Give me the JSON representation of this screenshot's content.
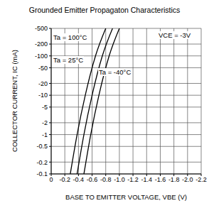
{
  "chart_data": {
    "type": "line",
    "title": "Grounded Emitter Propagaton Characteristics",
    "x_label": "BASE TO EMITTER VOLTAGE, VBE (V)",
    "y_label": "COLLECTOR CURRENT, IC (mA)",
    "annotations": [
      "VCE = -3V"
    ],
    "log": "y",
    "grid": true,
    "xlim": [
      -2.2,
      0
    ],
    "ylim": [
      -500,
      -0.1
    ],
    "xticks": [
      0,
      -0.2,
      -0.4,
      -0.6,
      -0.8,
      {
        "value": -1.0,
        "label": "-1.0"
      },
      -1.2,
      -1.4,
      -1.6,
      -1.8,
      {
        "value": -2.0,
        "label": "-2.0"
      },
      -2.2
    ],
    "yticks": [
      -500,
      -200,
      -100,
      -50,
      -20,
      -10,
      -5,
      -2,
      -1,
      -0.5,
      -0.2,
      -0.1
    ],
    "series": [
      {
        "name": "Ta = 100°C",
        "color": "#000000",
        "x": [
          -0.28,
          -0.38,
          -0.5,
          -0.65,
          -0.8
        ],
        "values": [
          -0.1,
          -1,
          -10,
          -100,
          -500
        ]
      },
      {
        "name": "Ta = 25°C",
        "color": "#000000",
        "x": [
          -0.38,
          -0.48,
          -0.6,
          -0.75,
          -0.9
        ],
        "values": [
          -0.1,
          -1,
          -10,
          -100,
          -500
        ]
      },
      {
        "name": "Ta = -40°C",
        "color": "#000000",
        "x": [
          -0.48,
          -0.58,
          -0.7,
          -0.85,
          -1.0
        ],
        "values": [
          -0.1,
          -1,
          -10,
          -100,
          -500
        ]
      }
    ]
  }
}
